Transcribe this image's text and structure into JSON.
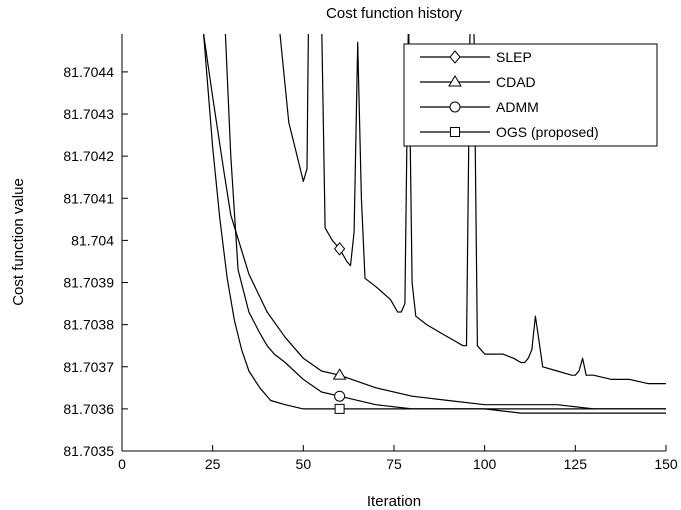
{
  "chart_data": {
    "type": "line",
    "title": "Cost function history",
    "xlabel": "Iteration",
    "ylabel": "Cost function value",
    "xlim": [
      0,
      150
    ],
    "ylim": [
      81.7035,
      81.70449
    ],
    "xticks": [
      0,
      25,
      50,
      75,
      100,
      125,
      150
    ],
    "xtick_labels": [
      "0",
      "25",
      "50",
      "75",
      "100",
      "125",
      "150"
    ],
    "yticks": [
      81.7035,
      81.7036,
      81.7037,
      81.7038,
      81.7039,
      81.704,
      81.7041,
      81.7042,
      81.7043,
      81.7044
    ],
    "ytick_labels": [
      "81.7035",
      "81.7036",
      "81.7037",
      "81.7038",
      "81.7039",
      "81.704",
      "81.7041",
      "81.7042",
      "81.7043",
      "81.7044"
    ],
    "grid": false,
    "legend_position": "top-right",
    "line_color": "#000000",
    "series": [
      {
        "name": "SLEP",
        "marker": "diamond",
        "marker_x": 60,
        "x": [
          43,
          46,
          48,
          50,
          51,
          51.4,
          52,
          55,
          56,
          58,
          60,
          62,
          63,
          64,
          65,
          66,
          67,
          70,
          74,
          76,
          77,
          78,
          79,
          80,
          81,
          84,
          88,
          92,
          94,
          95,
          96,
          97,
          98,
          100,
          105,
          108,
          110,
          111,
          112,
          113,
          114,
          115,
          116,
          120,
          124,
          125,
          126,
          127,
          128,
          130,
          135,
          140,
          145,
          150
        ],
        "y": [
          81.70454,
          81.70428,
          81.70421,
          81.70414,
          81.70417,
          81.7045,
          81.70454,
          81.70454,
          81.70403,
          81.704,
          81.70398,
          81.70395,
          81.70394,
          81.70402,
          81.70447,
          81.7041,
          81.70391,
          81.70389,
          81.70386,
          81.70383,
          81.70383,
          81.70385,
          81.70454,
          81.7039,
          81.70382,
          81.7038,
          81.70378,
          81.70376,
          81.70375,
          81.70375,
          81.70454,
          81.70454,
          81.70375,
          81.70373,
          81.70373,
          81.70372,
          81.70371,
          81.70371,
          81.70372,
          81.70374,
          81.70382,
          81.70376,
          81.7037,
          81.70369,
          81.70368,
          81.70368,
          81.70369,
          81.70372,
          81.70368,
          81.70368,
          81.70367,
          81.70367,
          81.70366,
          81.70366
        ]
      },
      {
        "name": "CDAD",
        "marker": "triangle",
        "marker_x": 60,
        "x": [
          22.5,
          25,
          28,
          30,
          35,
          40,
          45,
          50,
          55,
          60,
          70,
          80,
          90,
          100,
          110,
          120,
          130,
          140,
          150
        ],
        "y": [
          81.70449,
          81.70434,
          81.70417,
          81.70406,
          81.70392,
          81.70383,
          81.70377,
          81.70372,
          81.70369,
          81.70368,
          81.70365,
          81.70363,
          81.70362,
          81.70361,
          81.70361,
          81.70361,
          81.7036,
          81.7036,
          81.7036
        ]
      },
      {
        "name": "ADMM",
        "marker": "circle",
        "marker_x": 60,
        "x": [
          28.5,
          30,
          32,
          35,
          38,
          40,
          42,
          45,
          50,
          55,
          60,
          70,
          80,
          90,
          100,
          110,
          120,
          130,
          140,
          150
        ],
        "y": [
          81.70449,
          81.7042,
          81.70393,
          81.70383,
          81.70378,
          81.70375,
          81.70373,
          81.70371,
          81.70367,
          81.70364,
          81.70363,
          81.70361,
          81.7036,
          81.7036,
          81.7036,
          81.7036,
          81.7036,
          81.7036,
          81.7036,
          81.7036
        ]
      },
      {
        "name": "OGS (proposed)",
        "marker": "square",
        "marker_x": 60,
        "x": [
          22.5,
          25,
          27,
          29,
          31,
          33,
          35,
          38,
          41,
          45,
          50,
          55,
          60,
          70,
          80,
          90,
          100,
          110,
          120,
          130,
          140,
          150
        ],
        "y": [
          81.70449,
          81.70422,
          81.70405,
          81.70391,
          81.70381,
          81.70374,
          81.70369,
          81.70365,
          81.70362,
          81.70361,
          81.7036,
          81.7036,
          81.7036,
          81.7036,
          81.7036,
          81.7036,
          81.7036,
          81.70359,
          81.70359,
          81.70359,
          81.70359,
          81.70359
        ]
      }
    ]
  }
}
